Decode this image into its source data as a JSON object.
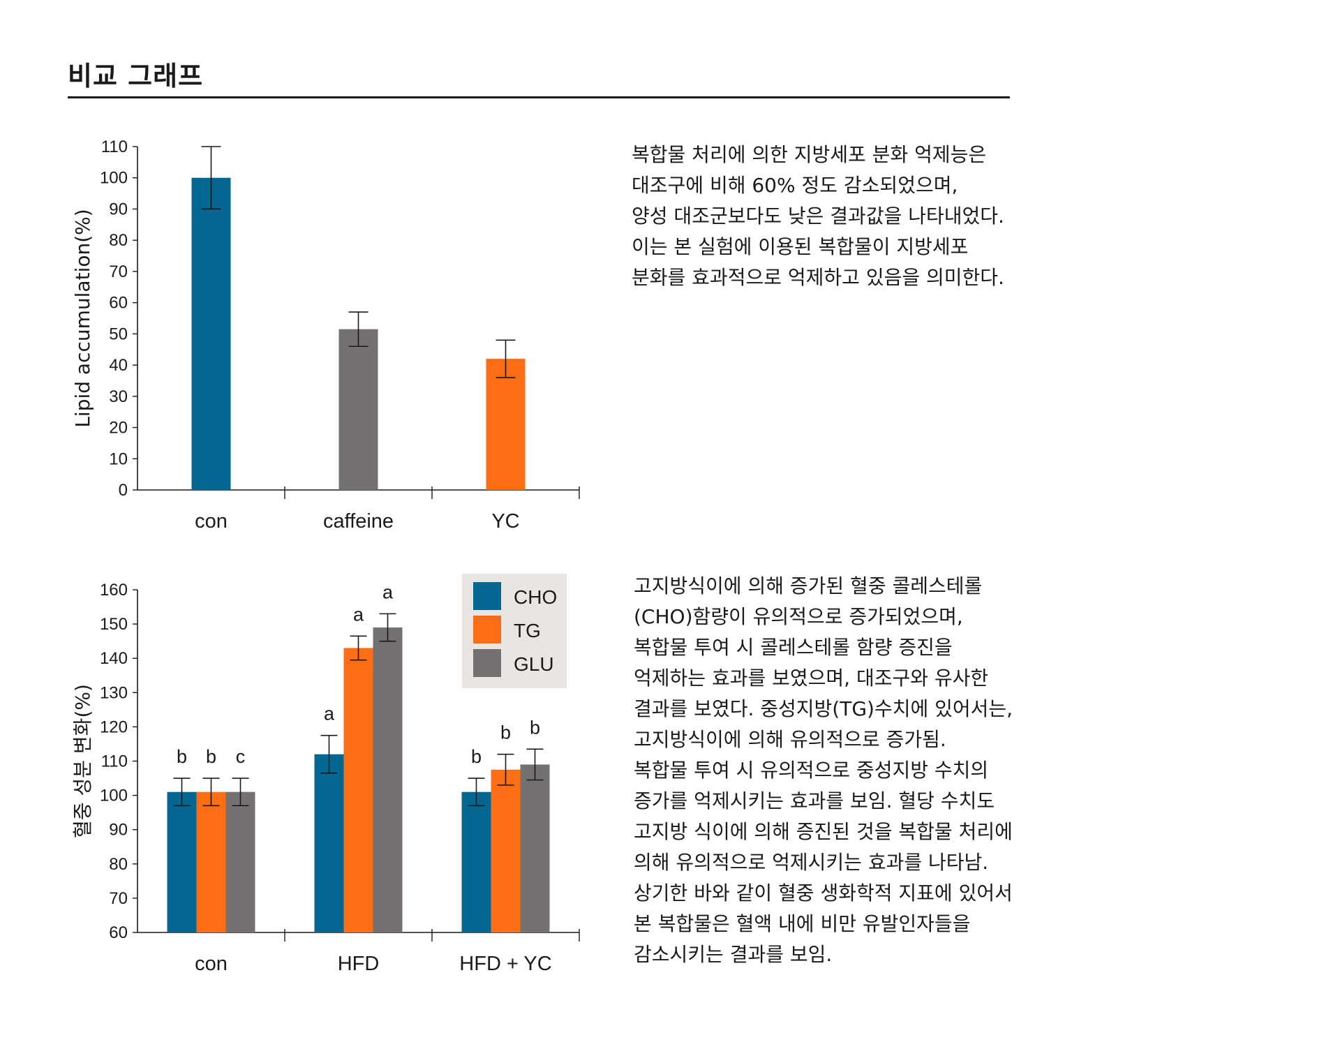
{
  "page": {
    "title": "비교 그래프",
    "paragraph1": "복합물 처리에 의한 지방세포 분화 억제능은\n대조구에 비해 60% 정도 감소되었으며,\n양성 대조군보다도 낮은 결과값을 나타내었다.\n이는 본 실험에 이용된 복합물이 지방세포\n분화를 효과적으로 억제하고 있음을 의미한다.",
    "paragraph2": "고지방식이에 의해 증가된 혈중 콜레스테롤\n(CHO)함량이 유의적으로 증가되었으며,\n복합물 투여 시 콜레스테롤 함량 증진을\n억제하는 효과를 보였으며, 대조구와 유사한\n결과를 보였다. 중성지방(TG)수치에 있어서는,\n고지방식이에 의해 유의적으로 증가됨.\n복합물 투여 시 유의적으로 중성지방 수치의\n증가를 억제시키는 효과를 보임. 혈당 수치도\n고지방 식이에 의해 증진된 것을 복합물 처리에\n의해 유의적으로 억제시키는 효과를 나타남.\n상기한 바와 같이 혈중 생화학적 지표에 있어서\n본 복합물은 혈액 내에 비만 유발인자들을\n감소시키는 결과를 보임."
  },
  "colors": {
    "blue": "#036791",
    "orange": "#fd6d14",
    "gray": "#737172",
    "legend_bg": "#e8e5e2"
  },
  "chart_data": [
    {
      "type": "bar",
      "title": "",
      "xlabel": "",
      "ylabel": "Lipid accumulation(%)",
      "ylim": [
        0,
        110
      ],
      "yticks": [
        0,
        10,
        20,
        30,
        40,
        50,
        60,
        70,
        80,
        90,
        100,
        110
      ],
      "grid": false,
      "categories": [
        "con",
        "caffeine",
        "YC"
      ],
      "values": [
        100,
        51.5,
        42
      ],
      "errors": [
        10,
        5.5,
        6
      ],
      "bar_colors": [
        "#036791",
        "#737172",
        "#fd6d14"
      ]
    },
    {
      "type": "bar",
      "title": "",
      "xlabel": "",
      "ylabel": "혈중 성분 변화(%)",
      "ylim": [
        60,
        160
      ],
      "yticks": [
        60,
        70,
        80,
        90,
        100,
        110,
        120,
        130,
        140,
        150,
        160
      ],
      "grid": false,
      "legend_position": "top-right",
      "categories": [
        "con",
        "HFD",
        "HFD + YC"
      ],
      "series": [
        {
          "name": "CHO",
          "color": "#036791",
          "values": [
            101,
            112,
            101
          ],
          "errors": [
            4,
            5.5,
            4
          ],
          "labels": [
            "b",
            "a",
            "b"
          ]
        },
        {
          "name": "TG",
          "color": "#fd6d14",
          "values": [
            101,
            143,
            107.5
          ],
          "errors": [
            4,
            3.5,
            4.5
          ],
          "labels": [
            "b",
            "a",
            "b"
          ]
        },
        {
          "name": "GLU",
          "color": "#737172",
          "values": [
            101,
            149,
            109
          ],
          "errors": [
            4,
            4,
            4.5
          ],
          "labels": [
            "c",
            "a",
            "b"
          ]
        }
      ]
    }
  ]
}
